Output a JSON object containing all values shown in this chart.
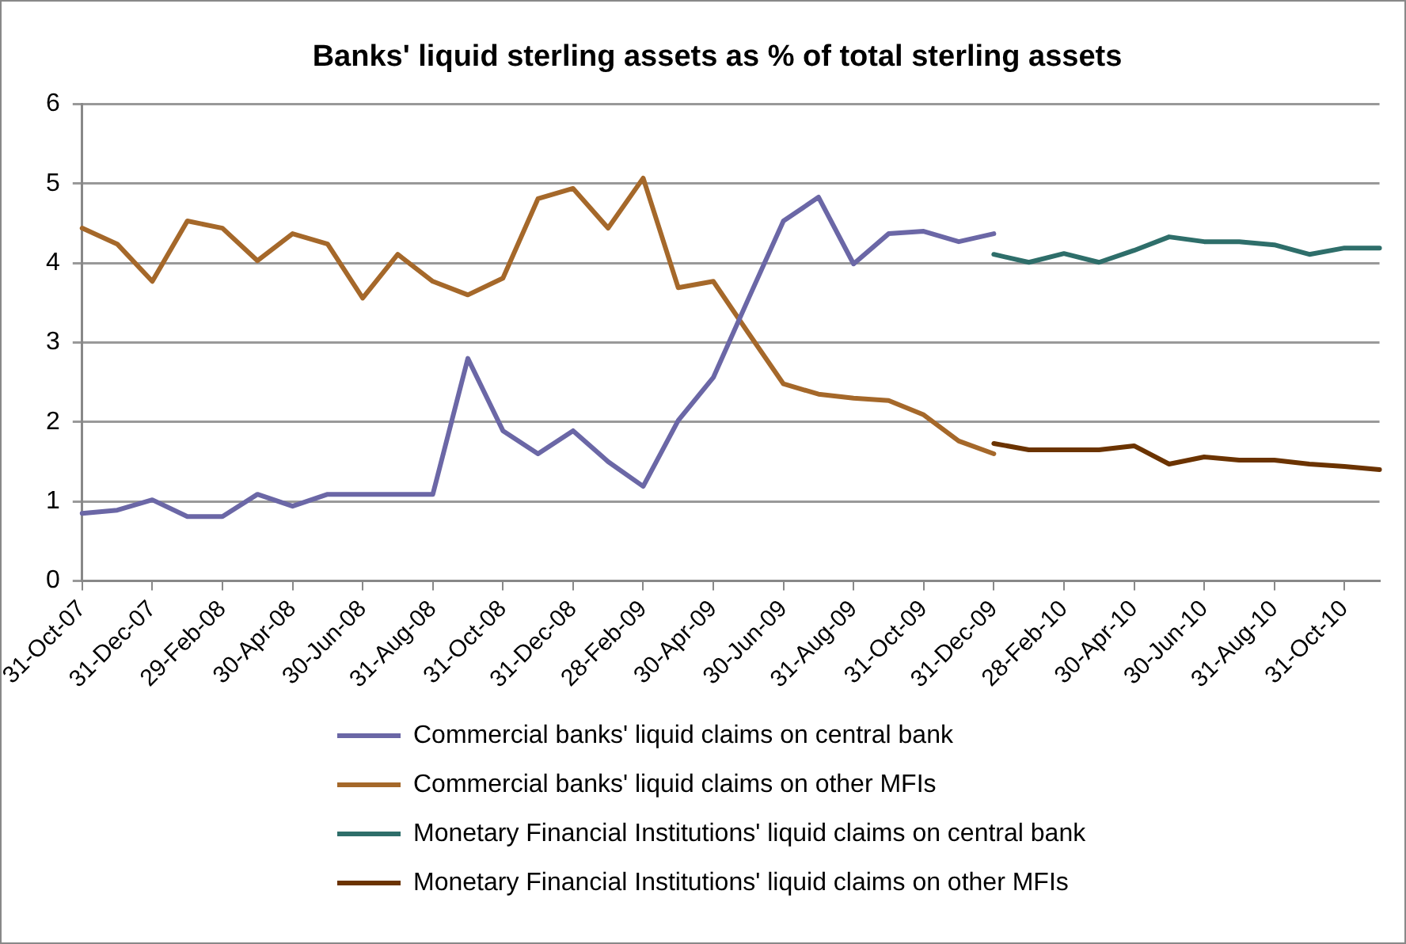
{
  "chart_data": {
    "type": "line",
    "title": "Banks' liquid sterling assets as % of total sterling assets",
    "categories": [
      "31-Oct-07",
      null,
      "31-Dec-07",
      null,
      "29-Feb-08",
      null,
      "30-Apr-08",
      null,
      "30-Jun-08",
      null,
      "31-Aug-08",
      null,
      "31-Oct-08",
      null,
      "31-Dec-08",
      null,
      "28-Feb-09",
      null,
      "30-Apr-09",
      null,
      "30-Jun-09",
      null,
      "31-Aug-09",
      null,
      "31-Oct-09",
      null,
      "31-Dec-09",
      null,
      "28-Feb-10",
      null,
      "30-Apr-10",
      null,
      "30-Jun-10",
      null,
      "31-Aug-10",
      null,
      "31-Oct-10",
      null
    ],
    "series": [
      {
        "name": "Commercial banks' liquid claims on central bank",
        "color": "#6b67a6",
        "values": [
          0.85,
          0.89,
          1.02,
          0.81,
          0.81,
          1.09,
          0.94,
          1.09,
          1.09,
          1.09,
          1.09,
          2.8,
          1.89,
          1.6,
          1.89,
          1.5,
          1.19,
          2.02,
          2.56,
          3.55,
          4.53,
          4.83,
          3.99,
          4.37,
          4.4,
          4.27,
          4.37,
          null,
          null,
          null,
          null,
          null,
          null,
          null,
          null,
          null,
          null,
          null
        ]
      },
      {
        "name": "Commercial banks' liquid claims on other MFIs",
        "color": "#a5682a",
        "values": [
          4.44,
          4.24,
          3.77,
          4.53,
          4.44,
          4.03,
          4.37,
          4.24,
          3.56,
          4.11,
          3.77,
          3.6,
          3.81,
          4.81,
          4.94,
          4.44,
          5.07,
          3.69,
          3.77,
          3.12,
          2.48,
          2.35,
          2.3,
          2.27,
          2.09,
          1.76,
          1.6,
          null,
          null,
          null,
          null,
          null,
          null,
          null,
          null,
          null,
          null,
          null
        ]
      },
      {
        "name": "Monetary Financial Institutions' liquid claims on central bank",
        "color": "#2e6e6a",
        "values": [
          null,
          null,
          null,
          null,
          null,
          null,
          null,
          null,
          null,
          null,
          null,
          null,
          null,
          null,
          null,
          null,
          null,
          null,
          null,
          null,
          null,
          null,
          null,
          null,
          null,
          null,
          4.11,
          4.01,
          4.12,
          4.01,
          4.16,
          4.33,
          4.27,
          4.27,
          4.23,
          4.11,
          4.19,
          4.19
        ]
      },
      {
        "name": "Monetary Financial Institutions' liquid claims on other MFIs",
        "color": "#6b3300",
        "values": [
          null,
          null,
          null,
          null,
          null,
          null,
          null,
          null,
          null,
          null,
          null,
          null,
          null,
          null,
          null,
          null,
          null,
          null,
          null,
          null,
          null,
          null,
          null,
          null,
          null,
          null,
          1.73,
          1.65,
          1.65,
          1.65,
          1.7,
          1.47,
          1.56,
          1.52,
          1.52,
          1.47,
          1.44,
          1.4
        ]
      }
    ],
    "ylim": [
      0,
      6
    ],
    "yticks": [
      0,
      1,
      2,
      3,
      4,
      5,
      6
    ],
    "grid": "y",
    "legend": "bottom",
    "marker": "none",
    "line_style": "solid"
  }
}
